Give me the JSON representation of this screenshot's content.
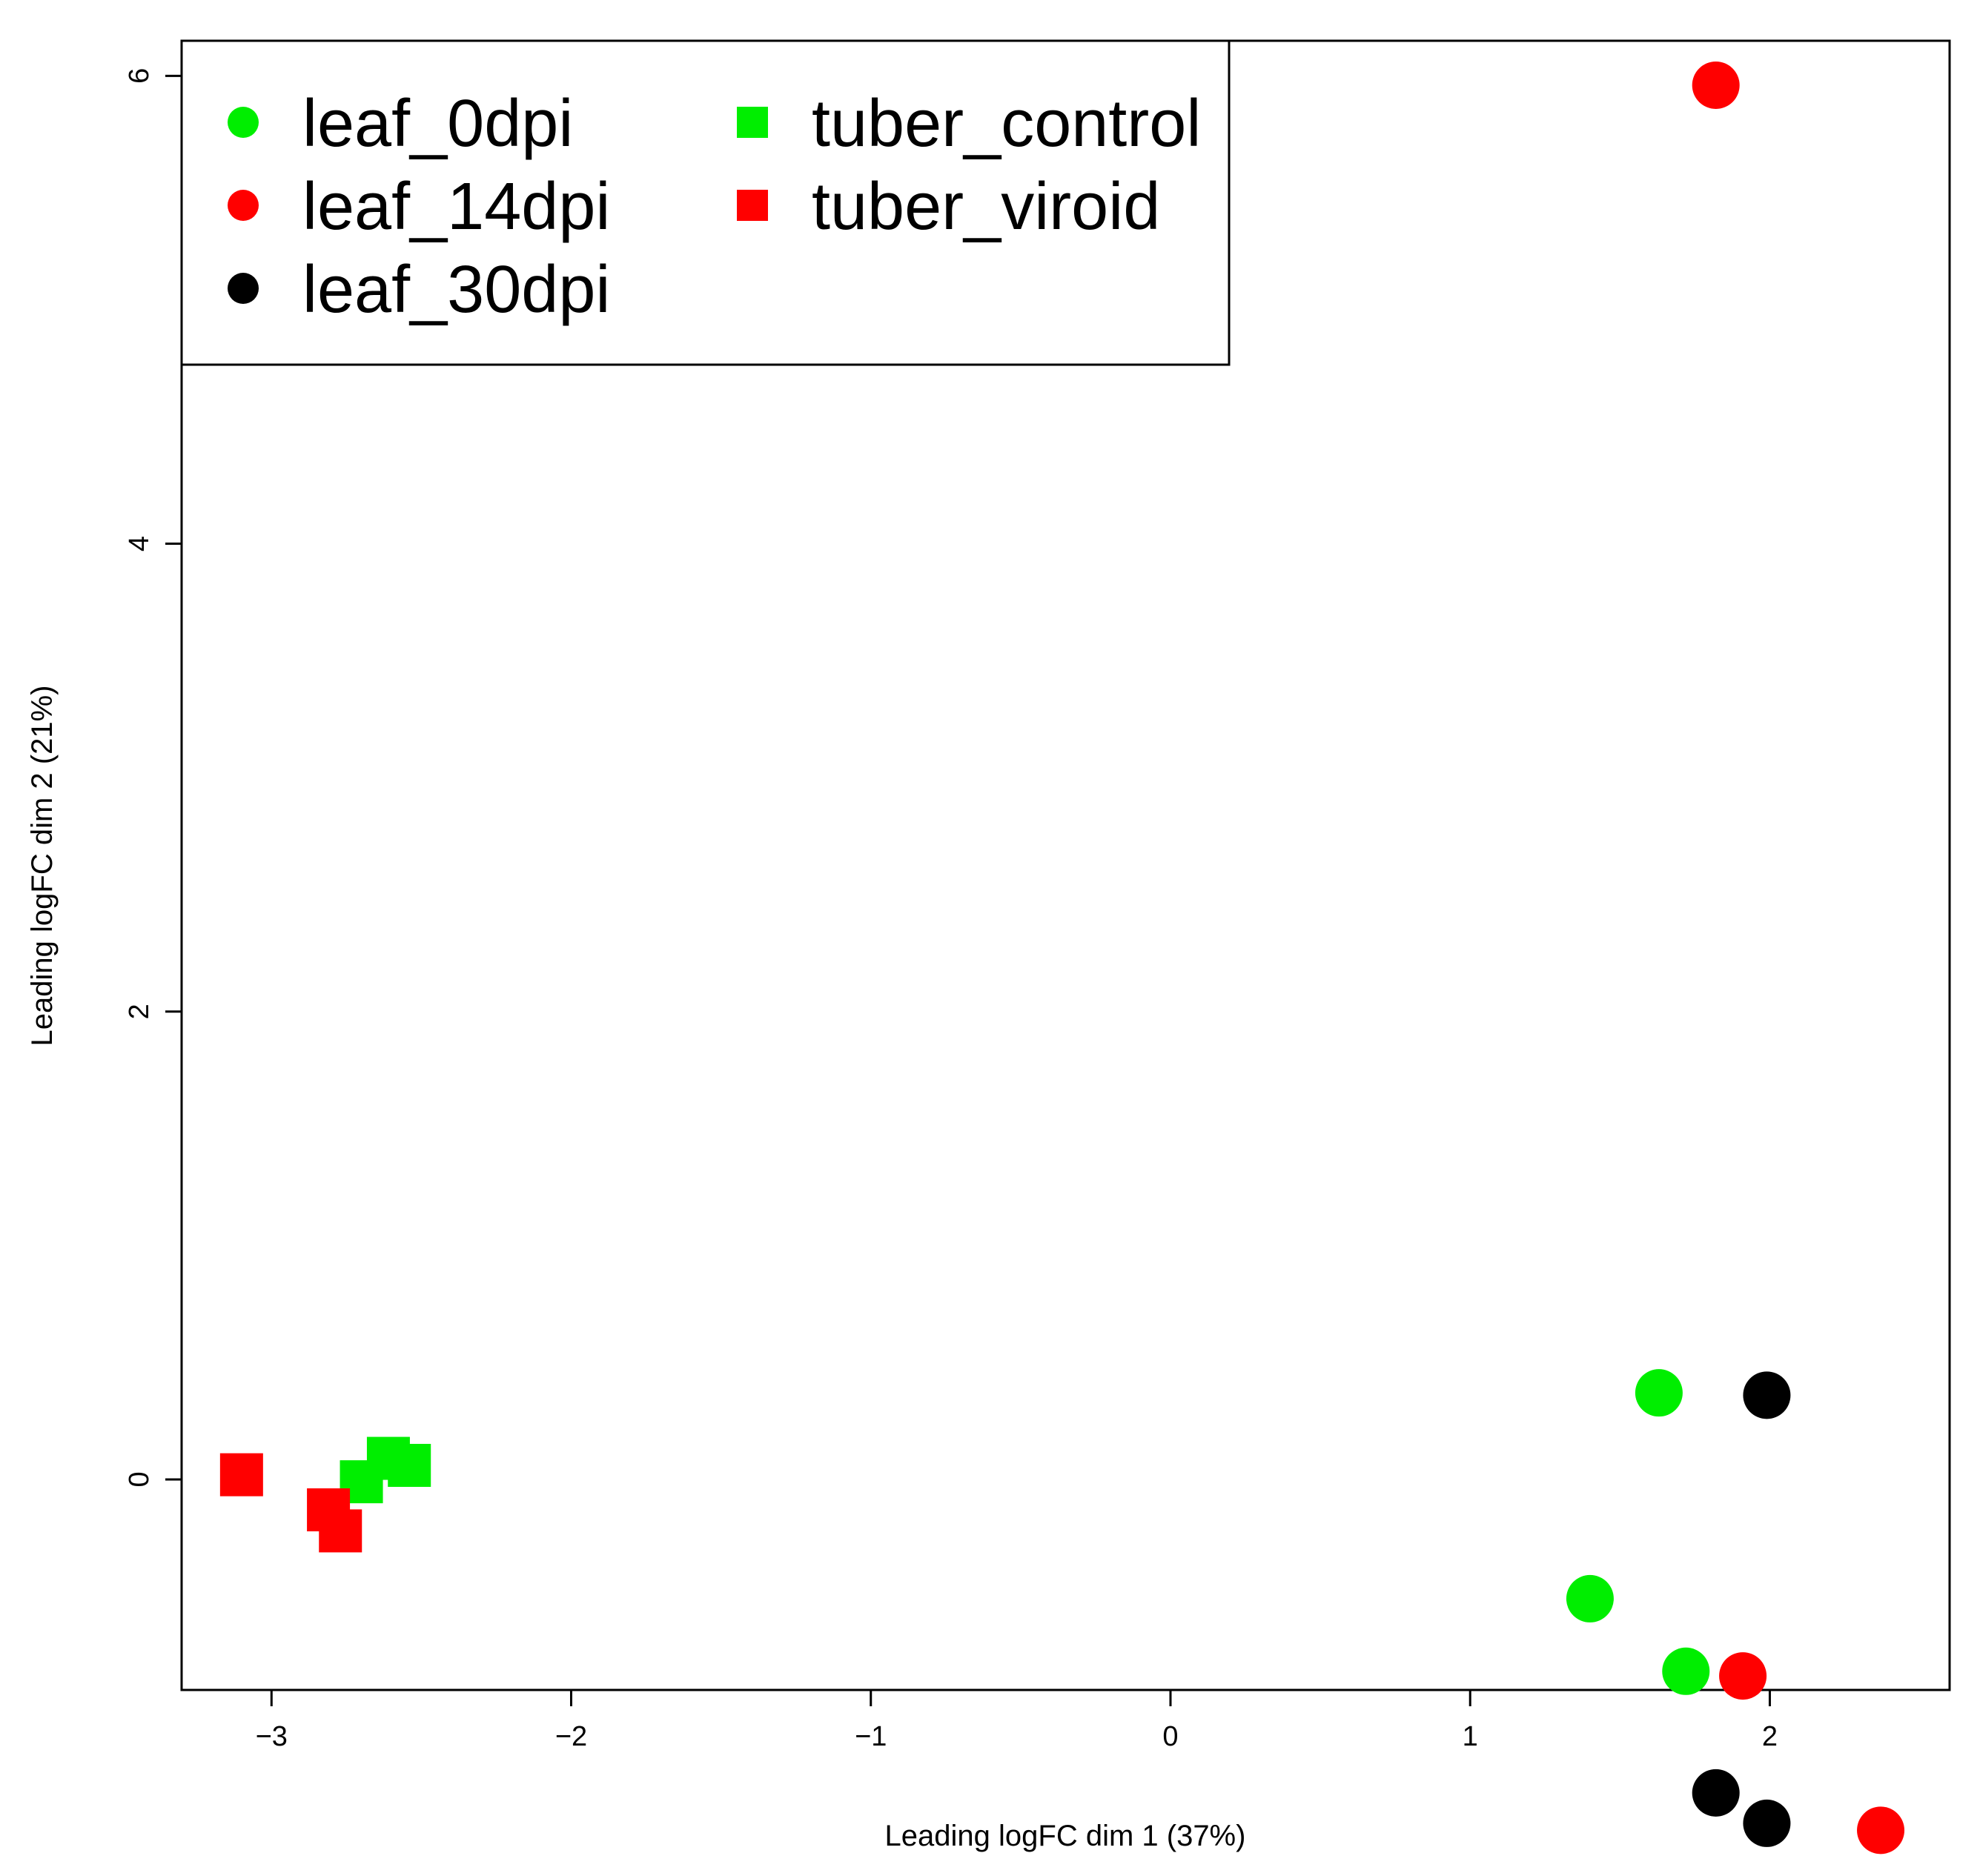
{
  "chart_data": {
    "type": "scatter",
    "title": "",
    "xlabel": "Leading logFC dim 1 (37%)",
    "ylabel": "Leading logFC dim 2 (21%)",
    "xlim": [
      -3.3,
      2.6
    ],
    "ylim": [
      -0.9,
      6.15
    ],
    "xticks": [
      -3,
      -2,
      -1,
      0,
      1,
      2
    ],
    "xtick_labels": [
      "−3",
      "−2",
      "−1",
      "0",
      "1",
      "2"
    ],
    "yticks": [
      0,
      2,
      4,
      6
    ],
    "ytick_labels": [
      "0",
      "2",
      "4",
      "6"
    ],
    "grid": false,
    "legend_position": "top-left",
    "series": [
      {
        "name": "leaf_0dpi",
        "color": "#00ee00",
        "shape": "circle",
        "points": [
          [
            1.63,
            0.37
          ],
          [
            1.4,
            -0.51
          ],
          [
            1.72,
            -0.82
          ]
        ]
      },
      {
        "name": "leaf_14dpi",
        "color": "#ff0000",
        "shape": "circle",
        "points": [
          [
            1.82,
            5.96
          ],
          [
            1.91,
            -0.84
          ],
          [
            2.37,
            -1.5
          ]
        ]
      },
      {
        "name": "leaf_30dpi",
        "color": "#000000",
        "shape": "circle",
        "points": [
          [
            1.99,
            0.36
          ],
          [
            1.82,
            -1.34
          ],
          [
            1.99,
            -1.47
          ]
        ]
      },
      {
        "name": "tuber_control",
        "color": "#00ee00",
        "shape": "square",
        "points": [
          [
            -2.7,
            -0.01
          ],
          [
            -2.61,
            0.09
          ],
          [
            -2.54,
            0.06
          ]
        ]
      },
      {
        "name": "tuber_viroid",
        "color": "#ff0000",
        "shape": "square",
        "points": [
          [
            -3.1,
            0.02
          ],
          [
            -2.81,
            -0.13
          ],
          [
            -2.77,
            -0.22
          ]
        ]
      }
    ]
  }
}
